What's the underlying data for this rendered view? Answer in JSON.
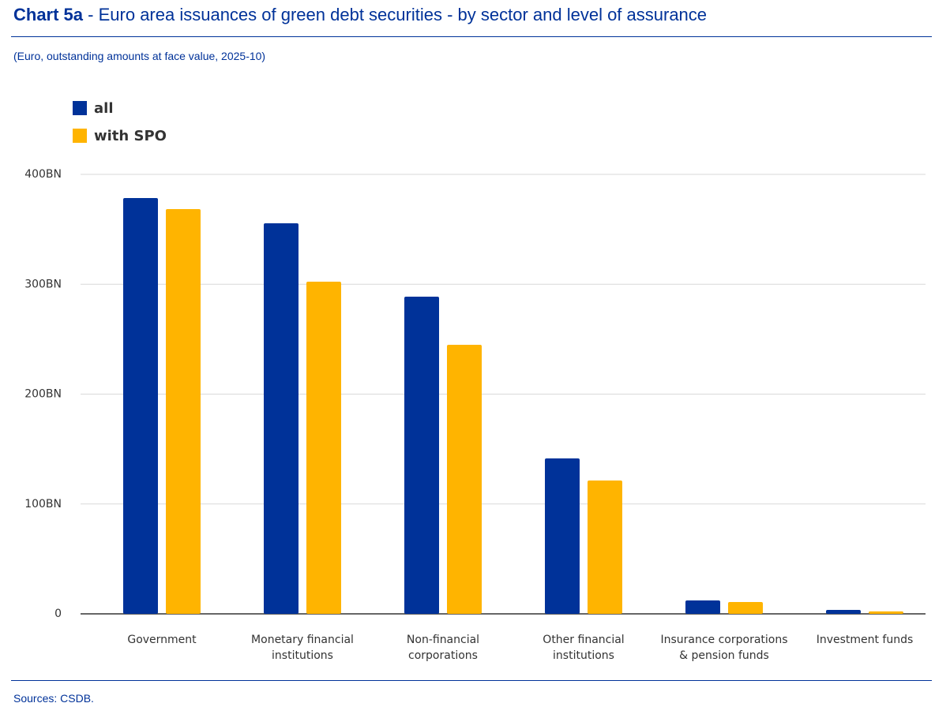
{
  "chart_label": "Chart 5a",
  "title": "- Euro area issuances of green debt securities - by sector and level of assurance",
  "subtitle": "(Euro, outstanding amounts at face value, 2025-10)",
  "source": "Sources: CSDB.",
  "chart_data": {
    "type": "bar",
    "categories": [
      "Government",
      "Monetary financial institutions",
      "Non-financial corporations",
      "Other financial institutions",
      "Insurance corporations & pension funds",
      "Investment funds"
    ],
    "series": [
      {
        "name": "all",
        "color": "#003299",
        "values": [
          378.5,
          355.5,
          288.7,
          141.5,
          12.2,
          3.6
        ]
      },
      {
        "name": "with SPO",
        "color": "#ffb400",
        "values": [
          368.4,
          302.3,
          244.9,
          121.4,
          10.8,
          2.2
        ]
      }
    ],
    "ylim": [
      0,
      400
    ],
    "yticks": [
      0,
      {
        "value": 100,
        "label": "100BN"
      },
      {
        "value": 200,
        "label": "200BN"
      },
      {
        "value": 300,
        "label": "300BN"
      },
      {
        "value": 400,
        "label": "400BN"
      }
    ],
    "grid": true,
    "legend": "top-left"
  }
}
